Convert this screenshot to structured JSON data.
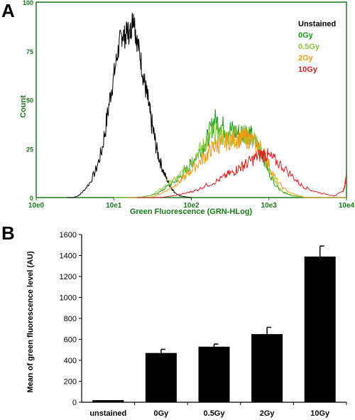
{
  "panels": {
    "a": {
      "label": "A"
    },
    "b": {
      "label": "B"
    }
  },
  "chart_data": [
    {
      "type": "line",
      "panel": "A",
      "xlabel": "Green Fluorescence (GRN-HLog)",
      "ylabel": "Count",
      "x_scale": "log",
      "xlim": [
        1,
        10000
      ],
      "ylim": [
        0,
        100
      ],
      "x_ticks": [
        "10e0",
        "10e1",
        "10e2",
        "10e3",
        "10e4"
      ],
      "y_ticks": [
        "0",
        "25",
        "50",
        "75",
        "100"
      ],
      "axis_color": "#1a7a1a",
      "legend_position": "top-right",
      "series": [
        {
          "name": "Unstained",
          "color": "#000000",
          "points": [
            [
              2.5,
              0
            ],
            [
              3,
              0
            ],
            [
              3.5,
              1
            ],
            [
              4,
              3
            ],
            [
              5,
              8
            ],
            [
              6,
              15
            ],
            [
              7,
              24
            ],
            [
              8,
              38
            ],
            [
              9,
              52
            ],
            [
              10,
              62
            ],
            [
              11,
              72
            ],
            [
              12,
              80
            ],
            [
              13,
              84
            ],
            [
              14,
              82
            ],
            [
              15,
              86
            ],
            [
              16,
              83
            ],
            [
              17,
              88
            ],
            [
              18,
              94
            ],
            [
              19,
              85
            ],
            [
              20,
              80
            ],
            [
              22,
              72
            ],
            [
              24,
              62
            ],
            [
              26,
              55
            ],
            [
              28,
              48
            ],
            [
              30,
              40
            ],
            [
              33,
              32
            ],
            [
              36,
              24
            ],
            [
              40,
              18
            ],
            [
              45,
              12
            ],
            [
              50,
              8
            ],
            [
              55,
              5
            ],
            [
              60,
              3
            ],
            [
              70,
              1
            ],
            [
              80,
              0.5
            ],
            [
              100,
              0
            ]
          ]
        },
        {
          "name": "0Gy",
          "color": "#1a9a1a",
          "points": [
            [
              10,
              0
            ],
            [
              20,
              0
            ],
            [
              30,
              1
            ],
            [
              40,
              3
            ],
            [
              50,
              6
            ],
            [
              60,
              8
            ],
            [
              70,
              10
            ],
            [
              80,
              13
            ],
            [
              90,
              15
            ],
            [
              100,
              18
            ],
            [
              120,
              22
            ],
            [
              140,
              26
            ],
            [
              160,
              30
            ],
            [
              180,
              35
            ],
            [
              200,
              40
            ],
            [
              230,
              38
            ],
            [
              260,
              36
            ],
            [
              300,
              35
            ],
            [
              350,
              34
            ],
            [
              400,
              33
            ],
            [
              450,
              33
            ],
            [
              500,
              34
            ],
            [
              550,
              33
            ],
            [
              600,
              31
            ],
            [
              700,
              27
            ],
            [
              800,
              23
            ],
            [
              900,
              18
            ],
            [
              1000,
              13
            ],
            [
              1200,
              7
            ],
            [
              1500,
              3
            ],
            [
              2000,
              1
            ],
            [
              3000,
              0
            ],
            [
              10000,
              0
            ]
          ]
        },
        {
          "name": "0.5Gy",
          "color": "#8dc63f",
          "points": [
            [
              10,
              0
            ],
            [
              20,
              0
            ],
            [
              30,
              1
            ],
            [
              40,
              4
            ],
            [
              50,
              7
            ],
            [
              60,
              9
            ],
            [
              70,
              11
            ],
            [
              80,
              14
            ],
            [
              90,
              16
            ],
            [
              100,
              19
            ],
            [
              120,
              23
            ],
            [
              140,
              26
            ],
            [
              160,
              29
            ],
            [
              180,
              32
            ],
            [
              200,
              33
            ],
            [
              230,
              32
            ],
            [
              260,
              31
            ],
            [
              300,
              31
            ],
            [
              350,
              32
            ],
            [
              400,
              33
            ],
            [
              450,
              32
            ],
            [
              500,
              32
            ],
            [
              550,
              31
            ],
            [
              600,
              30
            ],
            [
              700,
              27
            ],
            [
              800,
              24
            ],
            [
              900,
              19
            ],
            [
              1000,
              14
            ],
            [
              1200,
              8
            ],
            [
              1500,
              3
            ],
            [
              2000,
              1
            ],
            [
              3000,
              0
            ],
            [
              10000,
              0
            ]
          ]
        },
        {
          "name": "2Gy",
          "color": "#f39c12",
          "points": [
            [
              15,
              0
            ],
            [
              30,
              0
            ],
            [
              40,
              2
            ],
            [
              50,
              4
            ],
            [
              60,
              6
            ],
            [
              70,
              8
            ],
            [
              80,
              10
            ],
            [
              90,
              12
            ],
            [
              100,
              14
            ],
            [
              120,
              17
            ],
            [
              140,
              20
            ],
            [
              160,
              22
            ],
            [
              180,
              25
            ],
            [
              200,
              26
            ],
            [
              230,
              27
            ],
            [
              260,
              28
            ],
            [
              300,
              29
            ],
            [
              350,
              30
            ],
            [
              400,
              30
            ],
            [
              450,
              31
            ],
            [
              500,
              30
            ],
            [
              550,
              30
            ],
            [
              600,
              29
            ],
            [
              700,
              27
            ],
            [
              800,
              25
            ],
            [
              900,
              21
            ],
            [
              1000,
              17
            ],
            [
              1200,
              10
            ],
            [
              1500,
              5
            ],
            [
              2000,
              2
            ],
            [
              3000,
              0
            ],
            [
              10000,
              0
            ]
          ]
        },
        {
          "name": "10Gy",
          "color": "#e31a1c",
          "points": [
            [
              20,
              0
            ],
            [
              40,
              0
            ],
            [
              60,
              1
            ],
            [
              80,
              2
            ],
            [
              100,
              3
            ],
            [
              120,
              4
            ],
            [
              150,
              6
            ],
            [
              200,
              8
            ],
            [
              250,
              10
            ],
            [
              300,
              12
            ],
            [
              350,
              13
            ],
            [
              400,
              15
            ],
            [
              450,
              16
            ],
            [
              500,
              17
            ],
            [
              600,
              19
            ],
            [
              700,
              21
            ],
            [
              800,
              22
            ],
            [
              900,
              22
            ],
            [
              1000,
              21
            ],
            [
              1200,
              19
            ],
            [
              1500,
              16
            ],
            [
              2000,
              11
            ],
            [
              2500,
              7
            ],
            [
              3000,
              5
            ],
            [
              4000,
              3
            ],
            [
              5000,
              2
            ],
            [
              7000,
              1
            ],
            [
              9000,
              3
            ],
            [
              9500,
              6
            ],
            [
              10000,
              12
            ]
          ]
        }
      ]
    },
    {
      "type": "bar",
      "panel": "B",
      "ylabel": "Mean of green fluorescence level (AU)",
      "xlabel": "",
      "categories": [
        "unstained",
        "0Gy",
        "0.5Gy",
        "2Gy",
        "10Gy"
      ],
      "values": [
        20,
        470,
        530,
        650,
        1390
      ],
      "errors": [
        0,
        35,
        25,
        65,
        100
      ],
      "ylim": [
        0,
        1600
      ],
      "y_ticks": [
        "0",
        "200",
        "400",
        "600",
        "800",
        "1000",
        "1200",
        "1400",
        "1600"
      ],
      "bar_color": "#000000"
    }
  ]
}
